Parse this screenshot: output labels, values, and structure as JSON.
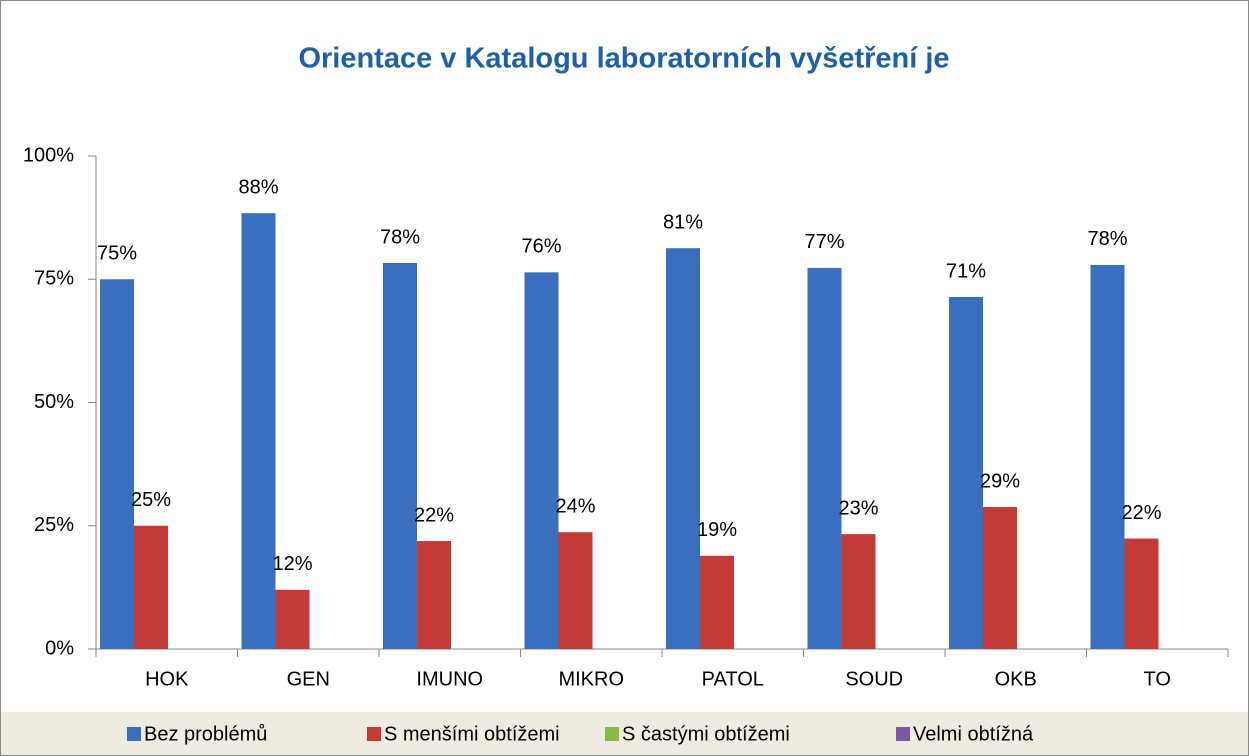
{
  "chart_data": {
    "type": "bar",
    "title": "Orientace v Katalogu laboratorních vyšetření je",
    "categories": [
      "HOK",
      "GEN",
      "IMUNO",
      "MIKRO",
      "PATOL",
      "SOUD",
      "OKB",
      "TO"
    ],
    "series": [
      {
        "name": "Bez problémů",
        "color": "#3a6fbf",
        "values": [
          75,
          88.4,
          78.3,
          76.4,
          81.3,
          77.3,
          71.4,
          77.9
        ],
        "value_labels": [
          "75%",
          "88%",
          "78%",
          "76%",
          "81%",
          "77%",
          "71%",
          "78%"
        ]
      },
      {
        "name": "S menšími obtížemi",
        "color": "#c23b38",
        "values": [
          25,
          12,
          21.9,
          23.7,
          18.9,
          23.3,
          28.8,
          22.4
        ],
        "value_labels": [
          "25%",
          "12%",
          "22%",
          "24%",
          "19%",
          "23%",
          "29%",
          "22%"
        ]
      },
      {
        "name": "S častými obtížemi",
        "color": "#8cb84a",
        "values": [
          0,
          0,
          0,
          0,
          0,
          0,
          0,
          0
        ]
      },
      {
        "name": "Velmi obtížná",
        "color": "#7a5aa6",
        "values": [
          0,
          0,
          0,
          0,
          0,
          0,
          0,
          0
        ]
      }
    ],
    "ylim": [
      0,
      100
    ],
    "yticks": [
      {
        "value": 0,
        "label": "0%"
      },
      {
        "value": 25,
        "label": "25%"
      },
      {
        "value": 50,
        "label": "50%"
      },
      {
        "value": 75,
        "label": "75%"
      },
      {
        "value": 100,
        "label": "100%"
      }
    ],
    "legend": "bottom"
  }
}
